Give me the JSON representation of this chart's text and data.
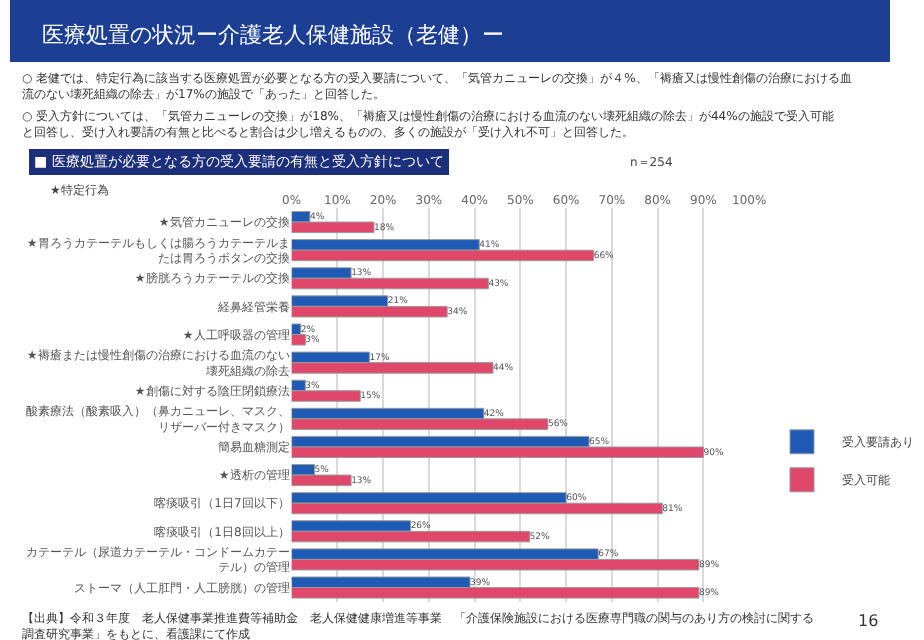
{
  "chart_data": {
    "type": "bar",
    "orientation": "horizontal",
    "title": "医療処置の状況ー介護老人保健施設（老健）ー",
    "subtitle": "■ 医療処置が必要となる方の受入要請の有無と受入方針について",
    "annotations": [
      "○ 老健では、特定行為に該当する医療処置が必要となる方の受入要請について、「気管カニューレの交換」が４%、「褥瘡又は慢性創傷の治療における血流のない壊死組織の除去」が17%の施設で「あった」と回答した。",
      "○ 受入方針については、「気管カニューレの交換」が18%、「褥瘡又は慢性創傷の治療における血流のない壊死組織の除去」が44%の施設で受入可能と回答し、受け入れ要請の有無と比べると割合は少し増えるものの、多くの施設が「受け入れ不可」と回答した。",
      "n＝254",
      "★特定行為",
      "【出典】令和３年度　老人保健事業推進費等補助金　老人保健健康増進等事業　「介護保険施設における医療専門職の関与のあり方の検討に関する調査研究事業」をもとに、看護課にて作成",
      "16"
    ],
    "categories": [
      "★気管カニューレの交換",
      "★胃ろうカテーテルもしくは腸ろうカテーテルまたは胃ろうボタンの交換",
      "★膀胱ろうカテーテルの交換",
      "経鼻経管栄養",
      "★人工呼吸器の管理",
      "★褥瘡または慢性創傷の治療における血流のない壊死組織の除去",
      "★創傷に対する陰圧閉鎖療法",
      "酸素療法（酸素吸入）（鼻カニューレ、マスク、リザーバー付きマスク）",
      "簡易血糖測定",
      "★透析の管理",
      "喀痰吸引（1日7回以下）",
      "喀痰吸引（1日8回以上）",
      "カテーテル（尿道カテーテル・コンドームカテーテル）の管理",
      "ストーマ（人工肛門・人工膀胱）の管理"
    ],
    "series": [
      {
        "name": "受入要請あり",
        "color": "#1f5bb5",
        "values": [
          4,
          41,
          13,
          21,
          2,
          17,
          3,
          42,
          65,
          5,
          60,
          26,
          67,
          39
        ],
        "value_labels": [
          "4%",
          "41%",
          "13%",
          "21%",
          "2%",
          "17%",
          "3%",
          "42%",
          "65%",
          "5%",
          "60%",
          "26%",
          "67%",
          "39%"
        ]
      },
      {
        "name": "受入可能",
        "color": "#e0476a",
        "values": [
          18,
          66,
          43,
          34,
          3,
          44,
          15,
          56,
          90,
          13,
          81,
          52,
          89,
          89
        ],
        "value_labels": [
          "18%",
          "66%",
          "43%",
          "34%",
          "3%",
          "44%",
          "15%",
          "56%",
          "90%",
          "13%",
          "81%",
          "52%",
          "89%",
          "89%"
        ]
      }
    ],
    "xlim": [
      0,
      100
    ],
    "xticks": [
      {
        "value": 0,
        "label": "0%"
      },
      {
        "value": 10,
        "label": "10%"
      },
      {
        "value": 20,
        "label": "20%"
      },
      {
        "value": 30,
        "label": "30%"
      },
      {
        "value": 40,
        "label": "40%"
      },
      {
        "value": 50,
        "label": "50%"
      },
      {
        "value": 60,
        "label": "60%"
      },
      {
        "value": 70,
        "label": "70%"
      },
      {
        "value": 80,
        "label": "80%"
      },
      {
        "value": 90,
        "label": "90%"
      },
      {
        "value": 100,
        "label": "100%"
      }
    ],
    "grid": "x",
    "legend": "right"
  }
}
